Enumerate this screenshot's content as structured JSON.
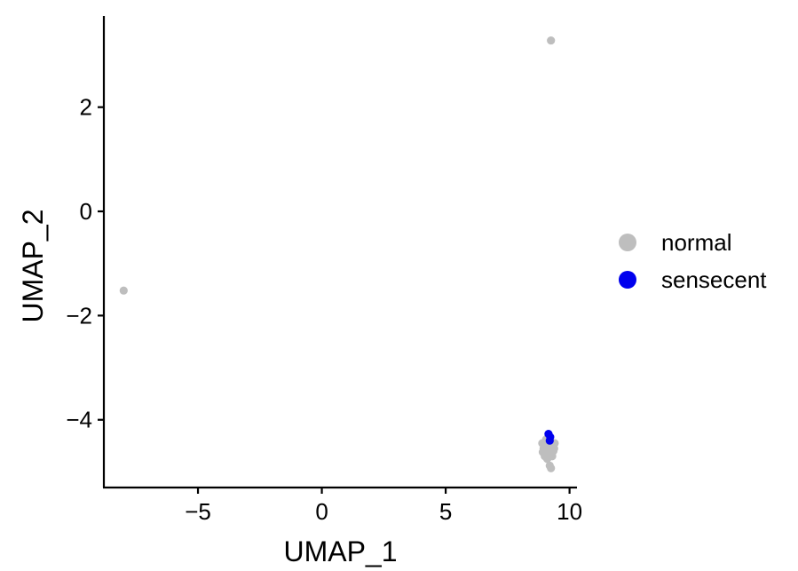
{
  "chart_data": {
    "type": "scatter",
    "xlabel": "UMAP_1",
    "ylabel": "UMAP_2",
    "xlim": [
      -8.8,
      10.3
    ],
    "ylim": [
      -5.3,
      3.75
    ],
    "xticks": [
      -5,
      0,
      5,
      10
    ],
    "yticks": [
      -4,
      -2,
      0,
      2
    ],
    "xtick_labels": [
      "−5",
      "0",
      "5",
      "10"
    ],
    "ytick_labels": [
      "−4",
      "−2",
      "0",
      "2"
    ],
    "grid": false,
    "legend_position": "right",
    "series": [
      {
        "name": "normal",
        "color": "#BEBEBE",
        "points": [
          {
            "x": 9.25,
            "y": 3.28
          },
          {
            "x": -8.0,
            "y": -1.52
          },
          {
            "x": 8.9,
            "y": -4.45
          },
          {
            "x": 8.95,
            "y": -4.55
          },
          {
            "x": 9.0,
            "y": -4.5
          },
          {
            "x": 9.05,
            "y": -4.6
          },
          {
            "x": 9.1,
            "y": -4.42
          },
          {
            "x": 9.15,
            "y": -4.65
          },
          {
            "x": 9.2,
            "y": -4.5
          },
          {
            "x": 9.25,
            "y": -4.58
          },
          {
            "x": 9.3,
            "y": -4.48
          },
          {
            "x": 9.35,
            "y": -4.6
          },
          {
            "x": 9.4,
            "y": -4.45
          },
          {
            "x": 9.0,
            "y": -4.7
          },
          {
            "x": 9.1,
            "y": -4.75
          },
          {
            "x": 9.2,
            "y": -4.35
          },
          {
            "x": 9.05,
            "y": -4.38
          },
          {
            "x": 9.3,
            "y": -4.7
          },
          {
            "x": 9.15,
            "y": -4.3
          },
          {
            "x": 9.2,
            "y": -4.88
          },
          {
            "x": 9.25,
            "y": -4.93
          },
          {
            "x": 8.92,
            "y": -4.62
          },
          {
            "x": 9.38,
            "y": -4.55
          }
        ]
      },
      {
        "name": "sensecent",
        "color": "#0000EE",
        "points": [
          {
            "x": 9.15,
            "y": -4.27
          },
          {
            "x": 9.22,
            "y": -4.33
          },
          {
            "x": 9.2,
            "y": -4.4
          }
        ]
      }
    ]
  }
}
